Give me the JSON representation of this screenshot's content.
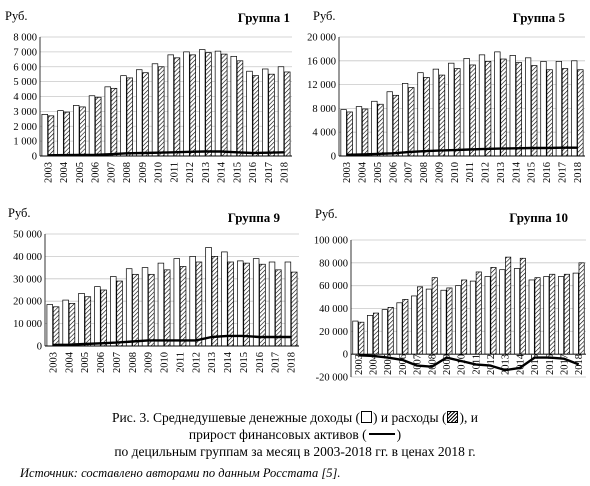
{
  "caption": {
    "line1_a": "Рис. 3. Среднедушевые денежные доходы (",
    "line1_b": ") и расходы (",
    "line1_c": "), и",
    "line2_a": "прирост финансовых активов (",
    "line2_b": ")",
    "line3": "по децильным группам за месяц в 2003-2018 гг. в ценах 2018 г.",
    "legend_income": "income-box",
    "legend_expense": "expense-hatched-box",
    "legend_assets": "asset-line"
  },
  "source": "Источник: составлено авторами по данным Росстата [5].",
  "chart_data": [
    {
      "type": "bar",
      "title": "Группа 1",
      "unit_label": "Руб.",
      "categories": [
        "2003",
        "2004",
        "2005",
        "2006",
        "2007",
        "2008",
        "2009",
        "2010",
        "2011",
        "2012",
        "2013",
        "2014",
        "2015",
        "2016",
        "2017",
        "2018"
      ],
      "ylim": [
        0,
        8000
      ],
      "yticks": [
        0,
        1000,
        2000,
        3000,
        4000,
        5000,
        6000,
        7000,
        8000
      ],
      "ytick_labels": [
        "0",
        "1 000",
        "2 000",
        "3 000",
        "4 000",
        "5 000",
        "6 000",
        "7 000",
        "8 000"
      ],
      "series": [
        {
          "name": "Доходы",
          "kind": "bar",
          "style": "open",
          "values": [
            2800,
            3050,
            3400,
            4050,
            4650,
            5400,
            5800,
            6200,
            6800,
            7000,
            7150,
            7050,
            6700,
            5700,
            5850,
            6000
          ]
        },
        {
          "name": "Расходы",
          "kind": "bar",
          "style": "hatched",
          "values": [
            2700,
            2950,
            3300,
            3950,
            4550,
            5250,
            5600,
            6000,
            6600,
            6800,
            6950,
            6850,
            6400,
            5400,
            5500,
            5650
          ]
        },
        {
          "name": "Прирост финансовых активов",
          "kind": "line",
          "values": [
            50,
            60,
            70,
            80,
            120,
            180,
            200,
            220,
            250,
            280,
            300,
            300,
            250,
            200,
            220,
            250
          ]
        }
      ],
      "grid": true
    },
    {
      "type": "bar",
      "title": "Группа 5",
      "unit_label": "Руб.",
      "categories": [
        "2003",
        "2004",
        "2005",
        "2006",
        "2007",
        "2008",
        "2009",
        "2010",
        "2011",
        "2012",
        "2013",
        "2014",
        "2015",
        "2016",
        "2017",
        "2018"
      ],
      "ylim": [
        0,
        20000
      ],
      "yticks": [
        0,
        4000,
        8000,
        12000,
        16000,
        20000
      ],
      "ytick_labels": [
        "0",
        "4 000",
        "8 000",
        "12 000",
        "16 000",
        "20 000"
      ],
      "series": [
        {
          "name": "Доходы",
          "kind": "bar",
          "style": "open",
          "values": [
            7800,
            8300,
            9200,
            10800,
            12200,
            14000,
            14600,
            15600,
            16400,
            17000,
            17500,
            16900,
            16500,
            15900,
            15900,
            16000
          ]
        },
        {
          "name": "Расходы",
          "kind": "bar",
          "style": "hatched",
          "values": [
            7400,
            7900,
            8700,
            10200,
            11500,
            13200,
            13600,
            14700,
            15300,
            15900,
            16300,
            15700,
            15200,
            14500,
            14700,
            14500
          ]
        },
        {
          "name": "Прирост финансовых активов",
          "kind": "line",
          "values": [
            200,
            250,
            350,
            450,
            650,
            800,
            900,
            1000,
            1100,
            1200,
            1250,
            1300,
            1350,
            1350,
            1400,
            1400
          ]
        }
      ],
      "grid": true
    },
    {
      "type": "bar",
      "title": "Группа 9",
      "unit_label": "Руб.",
      "categories": [
        "2003",
        "2004",
        "2005",
        "2006",
        "2007",
        "2008",
        "2009",
        "2010",
        "2011",
        "2012",
        "2013",
        "2014",
        "2015",
        "2016",
        "2017",
        "2018"
      ],
      "ylim": [
        0,
        50000
      ],
      "yticks": [
        0,
        10000,
        20000,
        30000,
        40000,
        50000
      ],
      "ytick_labels": [
        "0",
        "10 000",
        "20 000",
        "30 000",
        "40 000",
        "50 000"
      ],
      "series": [
        {
          "name": "Доходы",
          "kind": "bar",
          "style": "open",
          "values": [
            18500,
            20500,
            23500,
            26500,
            31000,
            34500,
            35000,
            37000,
            39000,
            40000,
            44000,
            42000,
            38000,
            39000,
            37500,
            37500
          ]
        },
        {
          "name": "Расходы",
          "kind": "bar",
          "style": "hatched",
          "values": [
            17500,
            19000,
            22000,
            25000,
            29000,
            32000,
            32000,
            34000,
            35500,
            37500,
            40000,
            37500,
            37000,
            36500,
            34000,
            33000
          ]
        },
        {
          "name": "Прирост финансовых активов",
          "kind": "line",
          "values": [
            500,
            600,
            900,
            1200,
            1500,
            2000,
            2500,
            2500,
            2500,
            2500,
            4000,
            4500,
            4500,
            4000,
            4000,
            4000
          ]
        }
      ],
      "grid": true
    },
    {
      "type": "bar",
      "title": "Группа 10",
      "unit_label": "Руб.",
      "categories": [
        "2003",
        "2004",
        "2005",
        "2006",
        "2007",
        "2008",
        "2009",
        "2010",
        "2011",
        "2012",
        "2013",
        "2014",
        "2015",
        "2016",
        "2017",
        "2018"
      ],
      "ylim": [
        -20000,
        100000
      ],
      "yticks": [
        -20000,
        0,
        20000,
        40000,
        60000,
        80000,
        100000
      ],
      "ytick_labels": [
        "-20 000",
        "0",
        "20 000",
        "40 000",
        "60 000",
        "80 000",
        "100 000"
      ],
      "series": [
        {
          "name": "Доходы",
          "kind": "bar",
          "style": "open",
          "values": [
            29000,
            34000,
            39000,
            45000,
            51000,
            57000,
            56000,
            60000,
            64000,
            68000,
            74000,
            75000,
            65000,
            68000,
            68000,
            71000
          ]
        },
        {
          "name": "Расходы",
          "kind": "bar",
          "style": "hatched",
          "values": [
            28000,
            36000,
            41000,
            48000,
            59000,
            67000,
            58000,
            65000,
            72000,
            76000,
            85000,
            84000,
            67000,
            70000,
            70000,
            80000
          ]
        },
        {
          "name": "Прирост финансовых активов",
          "kind": "line",
          "values": [
            -1000,
            -1500,
            -3000,
            -5000,
            -10000,
            -11000,
            -3000,
            -6000,
            -9000,
            -10000,
            -14000,
            -12000,
            -3000,
            -3000,
            -4000,
            -9000
          ]
        }
      ],
      "grid": true
    }
  ]
}
